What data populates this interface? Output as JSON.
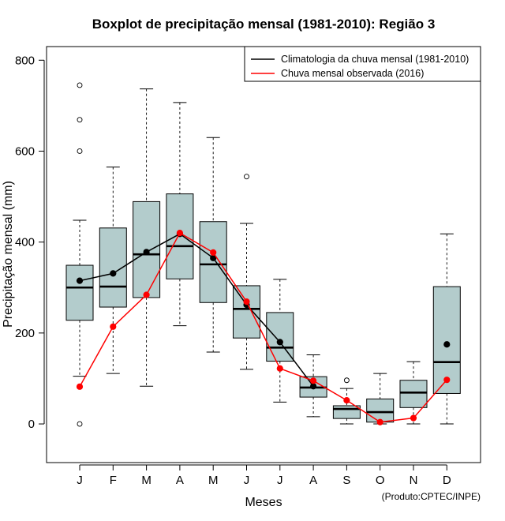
{
  "chart_data": {
    "type": "boxplot",
    "title": "Boxplot de precipitação mensal (1981-2010): Região 3",
    "xlabel": "Meses",
    "ylabel": "Precipitação mensal (mm)",
    "ylim": [
      -85,
      830
    ],
    "yticks": [
      0,
      200,
      400,
      600,
      800
    ],
    "categories": [
      "J",
      "F",
      "M",
      "A",
      "M",
      "J",
      "J",
      "A",
      "S",
      "O",
      "N",
      "D"
    ],
    "boxes": [
      {
        "min": 105,
        "q1": 228,
        "median": 300,
        "q3": 349,
        "max": 448,
        "outliers": [
          0,
          600,
          669,
          745
        ]
      },
      {
        "min": 111,
        "q1": 257,
        "median": 302,
        "q3": 431,
        "max": 565,
        "outliers": []
      },
      {
        "min": 83,
        "q1": 278,
        "median": 373,
        "q3": 489,
        "max": 737,
        "outliers": []
      },
      {
        "min": 216,
        "q1": 319,
        "median": 391,
        "q3": 506,
        "max": 707,
        "outliers": []
      },
      {
        "min": 158,
        "q1": 267,
        "median": 351,
        "q3": 445,
        "max": 630,
        "outliers": []
      },
      {
        "min": 120,
        "q1": 189,
        "median": 253,
        "q3": 304,
        "max": 441,
        "outliers": [
          544
        ]
      },
      {
        "min": 48,
        "q1": 138,
        "median": 168,
        "q3": 245,
        "max": 318,
        "outliers": []
      },
      {
        "min": 16,
        "q1": 59,
        "median": 80,
        "q3": 104,
        "max": 152,
        "outliers": []
      },
      {
        "min": 0,
        "q1": 12,
        "median": 33,
        "q3": 40,
        "max": 78,
        "outliers": [
          96
        ]
      },
      {
        "min": 0,
        "q1": 4,
        "median": 26,
        "q3": 55,
        "max": 111,
        "outliers": []
      },
      {
        "min": 0,
        "q1": 36,
        "median": 69,
        "q3": 96,
        "max": 137,
        "outliers": []
      },
      {
        "min": 0,
        "q1": 67,
        "median": 136,
        "q3": 302,
        "max": 418,
        "outliers": []
      }
    ],
    "series": [
      {
        "name": "Climatologia da chuva mensal (1981-2010)",
        "color": "#000000",
        "values": [
          315,
          331,
          378,
          418,
          365,
          262,
          180,
          83,
          null,
          null,
          null,
          175
        ],
        "segments": [
          [
            0,
            7
          ]
        ]
      },
      {
        "name": "Chuva mensal observada (2016)",
        "color": "#ff0000",
        "values": [
          82,
          214,
          284,
          420,
          377,
          269,
          122,
          95,
          52,
          4,
          13,
          97
        ],
        "segments": [
          [
            0,
            11
          ]
        ]
      }
    ],
    "legend_position": "top-right",
    "box_fill": "#b3cccc",
    "footer": "(Produto:CPTEC/INPE)"
  }
}
